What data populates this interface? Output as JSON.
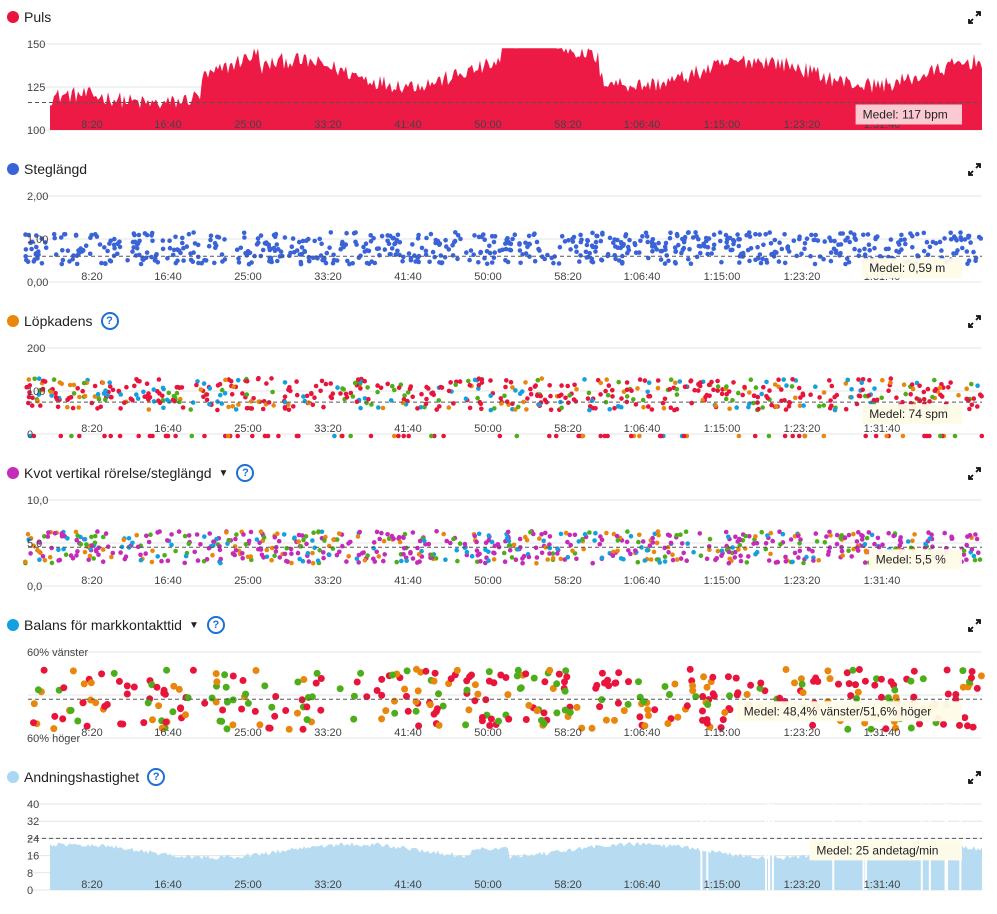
{
  "panels": [
    {
      "id": "puls",
      "title": "Puls",
      "color": "#e8143c",
      "help": false,
      "caret": false,
      "mean": "Medel: 117 bpm",
      "yticks": [
        "150",
        "125",
        "100"
      ],
      "meanFrac": 0.68
    },
    {
      "id": "steglangd",
      "title": "Steglängd",
      "color": "#3a63d8",
      "help": false,
      "caret": false,
      "mean": "Medel: 0,59 m",
      "yticks": [
        "2,00",
        "1,00",
        "0,00"
      ],
      "meanFrac": 0.7
    },
    {
      "id": "lopkadens",
      "title": "Löpkadens",
      "color": "#e8870c",
      "help": true,
      "caret": false,
      "mean": "Medel: 74 spm",
      "yticks": [
        "200",
        "100",
        "0"
      ],
      "meanFrac": 0.63
    },
    {
      "id": "kvot",
      "title": "Kvot vertikal rörelse/steglängd",
      "color": "#c42bb8",
      "help": true,
      "caret": true,
      "mean": "Medel: 5,5 %",
      "yticks": [
        "10,0",
        "5,0",
        "0,0"
      ],
      "meanFrac": 0.55
    },
    {
      "id": "balans",
      "title": "Balans för markkontakttid",
      "color": "#13a0e0",
      "help": true,
      "caret": true,
      "mean": "Medel: 48,4% vänster/51,6% höger",
      "yticks": [
        "60% vänster",
        "",
        "60% höger"
      ],
      "meanFrac": 0.55
    },
    {
      "id": "andning",
      "title": "Andningshastighet",
      "color": "#a8d8f4",
      "help": true,
      "caret": false,
      "mean": "Medel: 25 andetag/min",
      "yticks": [
        "40",
        "32",
        "24",
        "16",
        "8",
        "0"
      ],
      "meanFrac": 0.4
    }
  ],
  "xticks": [
    "8:20",
    "16:40",
    "25:00",
    "33:20",
    "41:40",
    "50:00",
    "58:20",
    "1:06:40",
    "1:15:00",
    "1:23:20",
    "1:31:40"
  ],
  "chart_data": [
    {
      "type": "area",
      "title": "Puls",
      "ylim": [
        100,
        150
      ],
      "mean": 117,
      "unit": "bpm",
      "series": [
        {
          "name": "Puls",
          "color": "#e8143c"
        }
      ]
    },
    {
      "type": "scatter",
      "title": "Steglängd",
      "ylim": [
        0,
        2
      ],
      "mean": 0.59,
      "unit": "m"
    },
    {
      "type": "scatter",
      "title": "Löpkadens",
      "ylim": [
        0,
        200
      ],
      "mean": 74,
      "unit": "spm"
    },
    {
      "type": "scatter",
      "title": "Kvot vertikal rörelse/steglängd",
      "ylim": [
        0,
        10
      ],
      "mean": 5.5,
      "unit": "%"
    },
    {
      "type": "scatter",
      "title": "Balans för markkontakttid",
      "mean_left": 48.4,
      "mean_right": 51.6
    },
    {
      "type": "area",
      "title": "Andningshastighet",
      "ylim": [
        0,
        40
      ],
      "mean": 25,
      "unit": "andetag/min"
    }
  ]
}
